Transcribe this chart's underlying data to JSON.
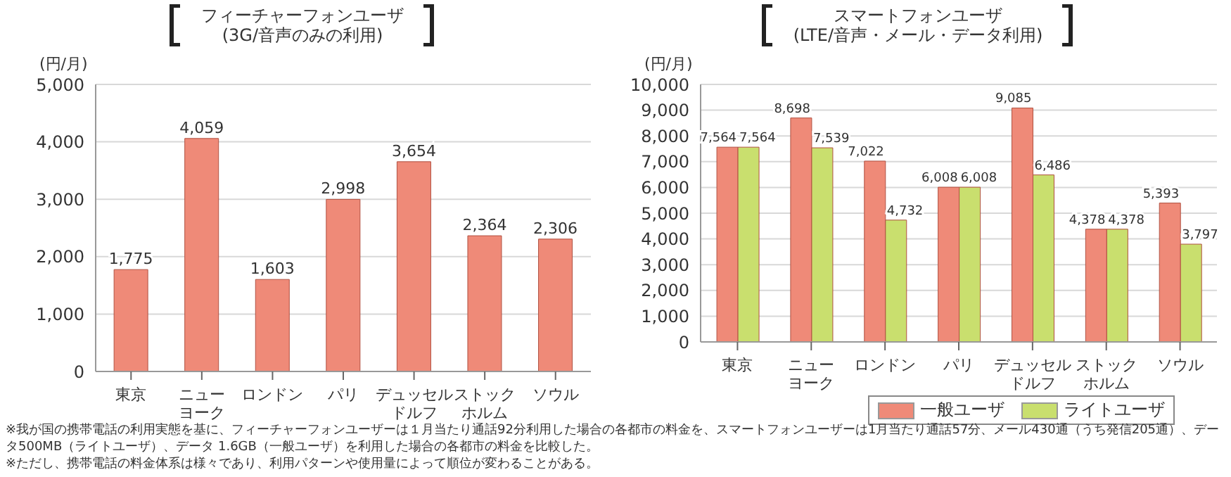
{
  "chart_data": [
    {
      "type": "bar",
      "title": "フィーチャーフォンユーザ",
      "subtitle": "(3G/音声のみの利用)",
      "ylabel": "(円/月)",
      "categories": [
        "東京",
        "ニューヨーク",
        "ロンドン",
        "パリ",
        "デュッセルドルフ",
        "ストックホルム",
        "ソウル"
      ],
      "values": [
        1775,
        4059,
        1603,
        2998,
        3654,
        2364,
        2306
      ],
      "color": "#ef8a78",
      "value_labels": [
        "1,775",
        "4,059",
        "1,603",
        "2,998",
        "3,654",
        "2,364",
        "2,306"
      ],
      "ylim": [
        0,
        5000
      ],
      "yticks": [
        0,
        {
          "value": 1000,
          "label": "1,000"
        },
        {
          "value": 2000,
          "label": "2,000"
        },
        {
          "value": 3000,
          "label": "3,000"
        },
        {
          "value": 4000,
          "label": "4,000"
        },
        {
          "value": 5000,
          "label": "5,000"
        }
      ],
      "grid": "y"
    },
    {
      "type": "bar",
      "title": "スマートフォンユーザ",
      "subtitle": "(LTE/音声・メール・データ利用)",
      "ylabel": "(円/月)",
      "categories": [
        "東京",
        "ニューヨーク",
        "ロンドン",
        "パリ",
        "デュッセルドルフ",
        "ストックホルム",
        "ソウル"
      ],
      "series": [
        {
          "name": "一般ユーザ",
          "color": "#ef8a78",
          "values": [
            7564,
            8698,
            7022,
            6008,
            9085,
            4378,
            5393
          ],
          "value_labels": [
            "7,564",
            "8,698",
            "7,022",
            "6,008",
            "9,085",
            "4,378",
            "5,393"
          ]
        },
        {
          "name": "ライトユーザ",
          "color": "#c9df6e",
          "values": [
            7564,
            7539,
            4732,
            6008,
            6486,
            4378,
            3797
          ],
          "value_labels": [
            "7,564",
            "7,539",
            "4,732",
            "6,008",
            "6,486",
            "4,378",
            "3,797"
          ]
        }
      ],
      "ylim": [
        0,
        10000
      ],
      "yticks": [
        0,
        {
          "value": 1000,
          "label": "1,000"
        },
        {
          "value": 2000,
          "label": "2,000"
        },
        {
          "value": 3000,
          "label": "3,000"
        },
        {
          "value": 4000,
          "label": "4,000"
        },
        {
          "value": 5000,
          "label": "5,000"
        },
        {
          "value": 6000,
          "label": "6,000"
        },
        {
          "value": 7000,
          "label": "7,000"
        },
        {
          "value": 8000,
          "label": "8,000"
        },
        {
          "value": 9000,
          "label": "9,000"
        },
        {
          "value": 10000,
          "label": "10,000"
        }
      ],
      "grid": "y",
      "legend": "bottom right",
      "annotations": [
        "※我が国の携帯電話の利用実態を基に、フィーチャーフォンユーザーは１月当たり通話92分利用した場合の各都市の料金を、スマートフォンユーザーは1月当たり通話57分、メール430通（うち発信205通）、データ500MB（ライトユーザ）、データ 1.6GB（一般ユーザ）を利用した場合の各都市の料金を比較した。",
        "※ただし、携帯電話の料金体系は様々であり、利用パターンや使用量によって順位が変わることがある。"
      ]
    }
  ]
}
